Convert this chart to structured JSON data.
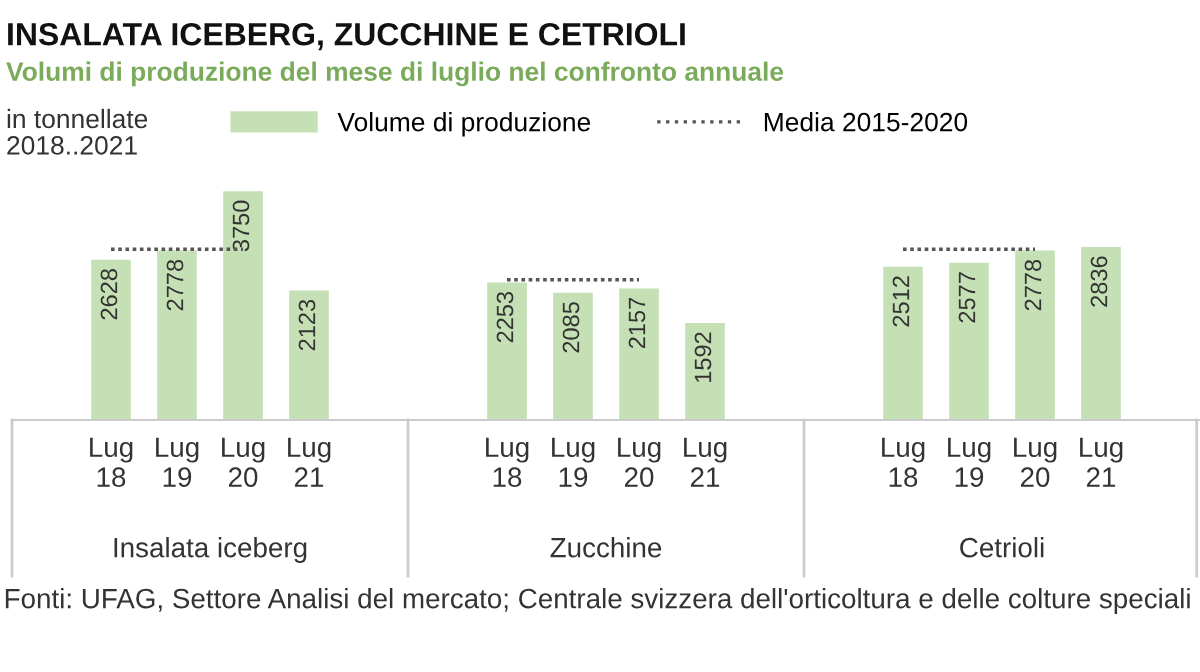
{
  "chart_data": {
    "type": "bar",
    "title": "INSALATA ICEBERG, ZUCCHINE E CETRIOLI",
    "subtitle": "Volumi di produzione del mese di luglio nel confronto annuale",
    "ylabel": "in tonnellate\n2018..2021",
    "categories": [
      "Lug\n18",
      "Lug\n19",
      "Lug\n20",
      "Lug\n21",
      null,
      null,
      "Lug\n18",
      "Lug\n19",
      "Lug\n20",
      "Lug\n21",
      null,
      null,
      "Lug\n18",
      "Lug\n19",
      "Lug\n20",
      "Lug\n21"
    ],
    "series": [
      {
        "name": "Volume di produzione",
        "color": "#c5e0b4",
        "values": [
          2628,
          2778,
          3750,
          2123,
          null,
          null,
          2253,
          2085,
          2157,
          1592,
          null,
          null,
          2512,
          2577,
          2778,
          2836
        ],
        "value_labels": [
          "2628",
          "2778",
          "3750",
          "2123",
          null,
          null,
          "2253",
          "2085",
          "2157",
          "1592",
          null,
          null,
          "2512",
          "2577",
          "2778",
          "2836"
        ]
      },
      {
        "name": "Media 2015-2020",
        "type": "line",
        "color": "#555555",
        "line_style": "dotted",
        "values": [
          2800,
          2800,
          2800,
          null,
          null,
          null,
          2300,
          2300,
          2300,
          null,
          null,
          null,
          2800,
          2800,
          2800,
          null
        ]
      }
    ],
    "annotations": [
      "Insalata iceberg",
      "Zucchine",
      "Cetrioli",
      "Fonti: UFAG, Settore Analisi del mercato; Centrale svizzera dell'orticoltura e delle colture speciali"
    ],
    "tick_labels": "x",
    "grid": false,
    "legend": "top"
  }
}
